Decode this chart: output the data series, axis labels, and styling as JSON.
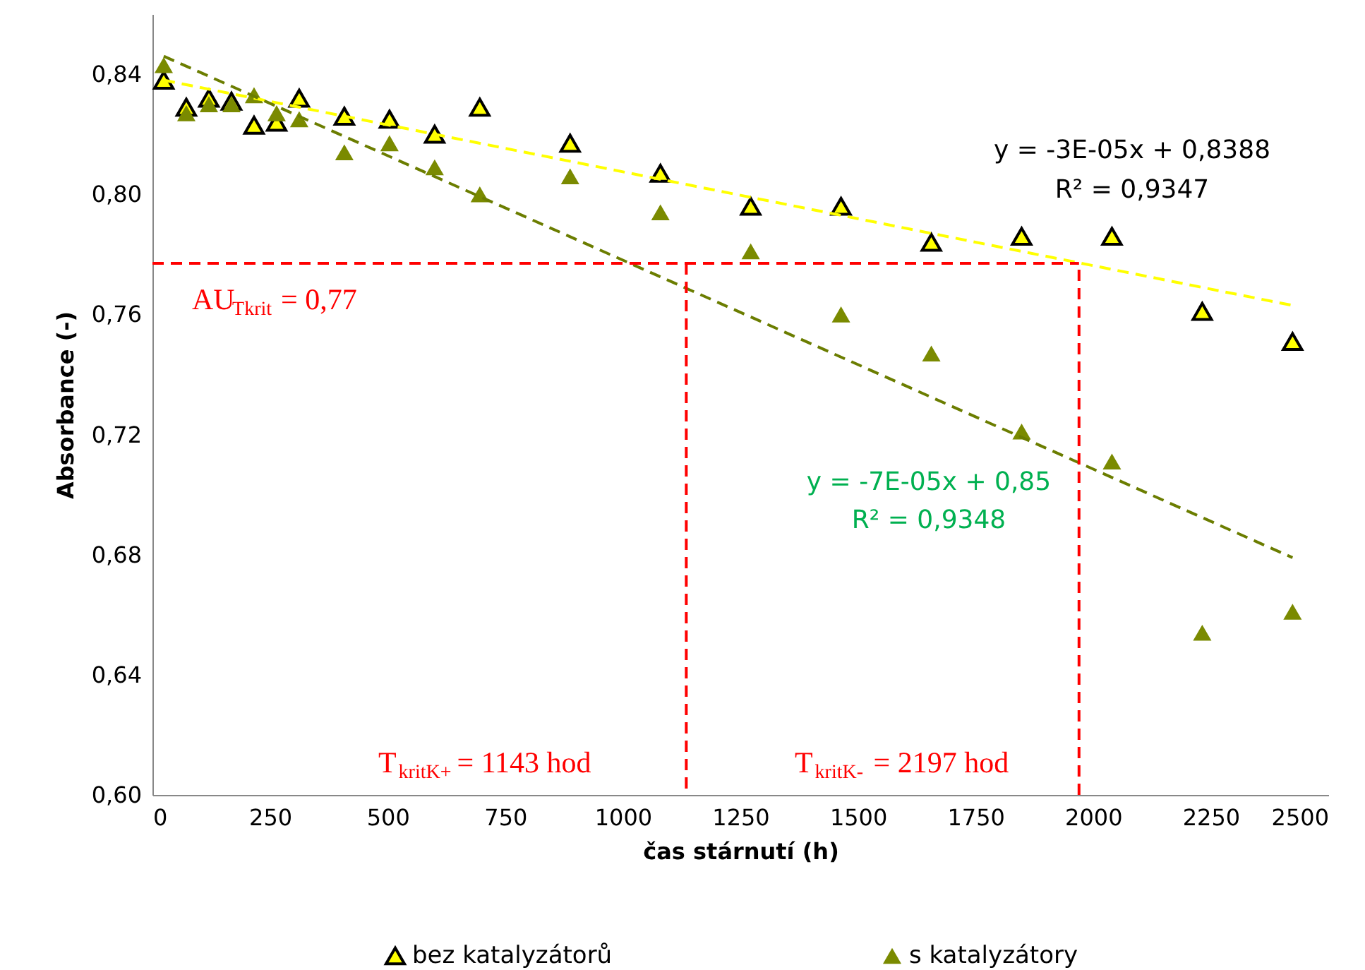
{
  "chart_data": {
    "type": "scatter",
    "xlabel": "čas stárnutí (h)",
    "ylabel": "Absorbance (-)",
    "xlim": [
      0,
      2500
    ],
    "xticks": [
      0,
      250,
      500,
      750,
      1000,
      1250,
      1500,
      1750,
      2000,
      2250,
      2500
    ],
    "ylim": [
      0.6,
      0.86
    ],
    "yticks": [
      {
        "value": 0.6,
        "label": "0,60"
      },
      {
        "value": 0.64,
        "label": "0,64"
      },
      {
        "value": 0.68,
        "label": "0,68"
      },
      {
        "value": 0.72,
        "label": "0,72"
      },
      {
        "value": 0.76,
        "label": "0,76"
      },
      {
        "value": 0.8,
        "label": "0,80"
      },
      {
        "value": 0.84,
        "label": "0,84"
      }
    ],
    "grid": false,
    "legend": "bottom",
    "marker": "triangle",
    "x": [
      24,
      72,
      120,
      168,
      216,
      264,
      312,
      408,
      504,
      600,
      696,
      888,
      1080,
      1272,
      1464,
      1656,
      1848,
      2040,
      2232,
      2424
    ],
    "series": [
      {
        "name": "bez katalyzátorů",
        "color": "#ffff00",
        "values": [
          0.838,
          0.829,
          0.832,
          0.831,
          0.823,
          0.824,
          0.832,
          0.826,
          0.825,
          0.82,
          0.829,
          0.817,
          0.807,
          0.796,
          0.796,
          0.784,
          0.786,
          0.786,
          0.761,
          0.751
        ]
      },
      {
        "name": "s katalyzátory",
        "color": "#7a8a00",
        "values": [
          0.843,
          0.827,
          0.83,
          0.83,
          0.833,
          0.827,
          0.825,
          0.814,
          0.817,
          0.809,
          0.8,
          0.806,
          0.794,
          0.781,
          0.76,
          0.747,
          0.721,
          0.711,
          0.654,
          0.661
        ]
      },
      {
        "type": "line",
        "color": "#ffff00",
        "line_style": "dashed",
        "marker": "none",
        "x": [
          24,
          2424
        ],
        "values": [
          0.838,
          0.763
        ]
      },
      {
        "type": "line",
        "color": "#6b7d00",
        "line_style": "dashed",
        "marker": "none",
        "x": [
          24,
          2424
        ],
        "values": [
          0.846,
          0.679
        ]
      },
      {
        "type": "line",
        "color": "#ff0000",
        "line_style": "dashed",
        "marker": "none",
        "x": [
          0,
          1970
        ],
        "values": [
          0.777,
          0.777
        ]
      },
      {
        "type": "line",
        "color": "#ff0000",
        "line_style": "dashed",
        "marker": "none",
        "x": [
          1135,
          1135
        ],
        "values": [
          0.777,
          0.6
        ]
      },
      {
        "type": "line",
        "color": "#ff0000",
        "line_style": "dashed",
        "marker": "none",
        "x": [
          1970,
          1970
        ],
        "values": [
          0.6,
          0.777
        ]
      }
    ],
    "annotations": [
      "y = -3E-05x + 0,8388",
      "R² = 0,9347",
      "y = -7E-05x + 0,85",
      "R² = 0,9348",
      "AU$_{Tkrit}$ = 0,77",
      "T$_{kritK+}$ = 1143 hod",
      "T$_{kritK-}$ = 2197 hod"
    ]
  }
}
